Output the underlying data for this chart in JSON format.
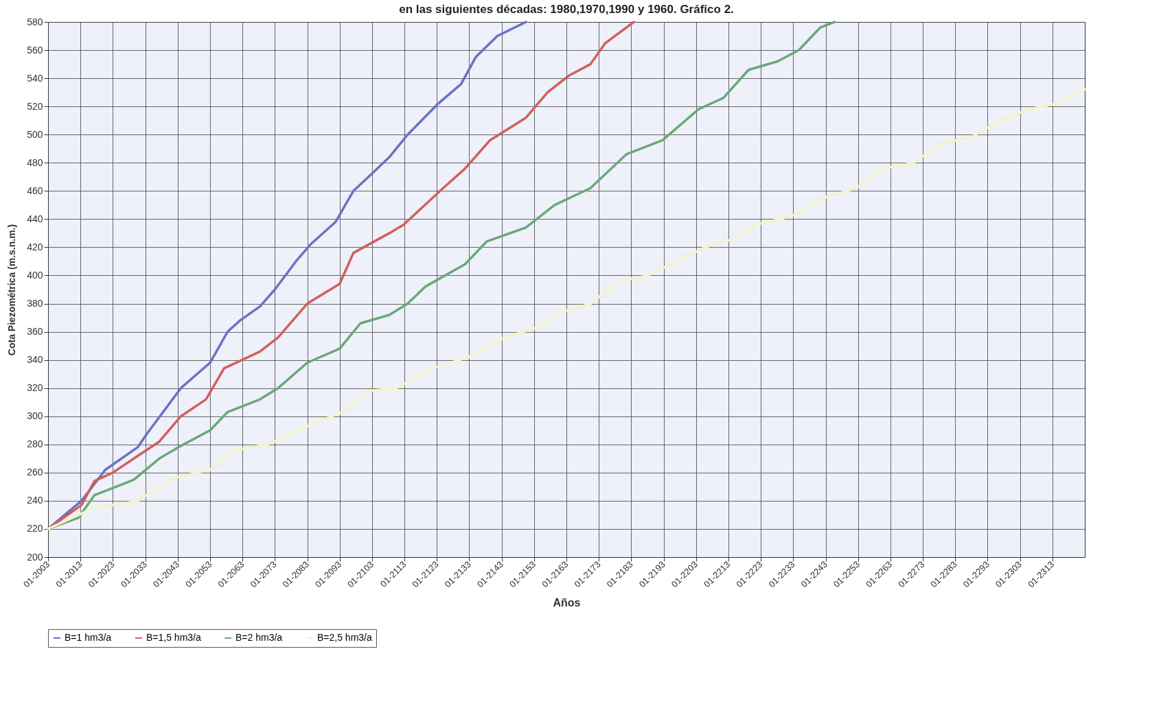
{
  "chart_data": {
    "type": "line",
    "title": "en las siguientes décadas: 1980,1970,1990 y 1960. Gráfico 2.",
    "xlabel": "Años",
    "ylabel": "Cota Piezométrica (m.s.n.m.)",
    "xlim": [
      "2003-01",
      "2323-01"
    ],
    "xticks": [
      {
        "value": "2003-01",
        "label": "01-2003"
      },
      {
        "value": "2013-01",
        "label": "01-2013"
      },
      {
        "value": "2023-01",
        "label": "01-2023"
      },
      {
        "value": "2033-01",
        "label": "01-2033"
      },
      {
        "value": "2043-01",
        "label": "01-2043"
      },
      {
        "value": "2053-01",
        "label": "01-2053"
      },
      {
        "value": "2063-01",
        "label": "01-2063"
      },
      {
        "value": "2073-01",
        "label": "01-2073"
      },
      {
        "value": "2083-01",
        "label": "01-2083"
      },
      {
        "value": "2093-01",
        "label": "01-2093"
      },
      {
        "value": "2103-01",
        "label": "01-2103"
      },
      {
        "value": "2113-01",
        "label": "01-2113"
      },
      {
        "value": "2123-01",
        "label": "01-2123"
      },
      {
        "value": "2133-01",
        "label": "01-2133"
      },
      {
        "value": "2143-01",
        "label": "01-2143"
      },
      {
        "value": "2153-01",
        "label": "01-2153"
      },
      {
        "value": "2163-01",
        "label": "01-2163"
      },
      {
        "value": "2173-01",
        "label": "01-2173"
      },
      {
        "value": "2183-01",
        "label": "01-2183"
      },
      {
        "value": "2193-01",
        "label": "01-2193"
      },
      {
        "value": "2203-01",
        "label": "01-2203"
      },
      {
        "value": "2213-01",
        "label": "01-2213"
      },
      {
        "value": "2223-01",
        "label": "01-2223"
      },
      {
        "value": "2233-01",
        "label": "01-2233"
      },
      {
        "value": "2243-01",
        "label": "01-2243"
      },
      {
        "value": "2253-01",
        "label": "01-2253"
      },
      {
        "value": "2263-01",
        "label": "01-2263"
      },
      {
        "value": "2273-01",
        "label": "01-2273"
      },
      {
        "value": "2283-01",
        "label": "01-2283"
      },
      {
        "value": "2293-01",
        "label": "01-2293"
      },
      {
        "value": "2303-01",
        "label": "01-2303"
      },
      {
        "value": "2313-01",
        "label": "01-2313"
      }
    ],
    "ylim": [
      200,
      580
    ],
    "yticks": [
      200,
      220,
      240,
      260,
      280,
      300,
      320,
      340,
      360,
      380,
      400,
      420,
      440,
      460,
      480,
      500,
      520,
      540,
      560,
      580
    ],
    "grid": true,
    "legend": "bottom",
    "series": [
      {
        "name": "B=1 hm3/a",
        "color": "#6a72c0",
        "x": [
          "2003-01",
          "2013-05",
          "2020-09",
          "2030-09",
          "2033-05",
          "2044-01",
          "2053-01",
          "2058-06",
          "2062-04",
          "2068-06",
          "2073-01",
          "2079-07",
          "2084-01",
          "2091-10",
          "2097-04",
          "2102-11",
          "2108-05",
          "2114-01",
          "2123-06",
          "2130-07",
          "2135-01",
          "2141-09",
          "2150-07"
        ],
        "values": [
          220,
          240,
          262,
          278,
          287,
          320,
          338,
          360,
          368,
          378,
          390,
          410,
          422,
          438,
          460,
          472,
          484,
          500,
          522,
          536,
          555,
          570,
          580
        ]
      },
      {
        "name": "B=1,5 hm3/a",
        "color": "#d0605e",
        "x": [
          "2003-01",
          "2013-05",
          "2017-05",
          "2023-01",
          "2029-07",
          "2037-05",
          "2044-01",
          "2051-10",
          "2057-05",
          "2068-06",
          "2074-01",
          "2083-01",
          "2093-01",
          "2097-04",
          "2108-05",
          "2112-10",
          "2124-01",
          "2131-10",
          "2139-06",
          "2150-07",
          "2157-03",
          "2163-11",
          "2170-06",
          "2175-01",
          "2183-11"
        ],
        "values": [
          220,
          237,
          254,
          260,
          270,
          282,
          300,
          312,
          334,
          346,
          356,
          380,
          394,
          416,
          430,
          436,
          460,
          476,
          496,
          512,
          530,
          542,
          550,
          565,
          580
        ]
      },
      {
        "name": "B=2 hm3/a",
        "color": "#6aa878",
        "x": [
          "2003-01",
          "2012-06",
          "2017-05",
          "2023-01",
          "2029-07",
          "2037-05",
          "2044-01",
          "2053-01",
          "2058-06",
          "2068-06",
          "2074-01",
          "2083-01",
          "2093-01",
          "2099-06",
          "2108-05",
          "2114-01",
          "2119-06",
          "2131-10",
          "2138-05",
          "2150-07",
          "2159-05",
          "2170-06",
          "2181-07",
          "2192-09",
          "2203-10",
          "2211-06",
          "2219-04",
          "2228-03",
          "2234-10",
          "2241-05",
          "2245-10"
        ],
        "values": [
          220,
          228,
          244,
          249,
          255,
          270,
          279,
          290,
          303,
          312,
          320,
          338,
          348,
          366,
          372,
          380,
          392,
          408,
          424,
          434,
          450,
          462,
          486,
          496,
          518,
          526,
          546,
          552,
          560,
          576,
          580
        ]
      },
      {
        "name": "B=2,5 hm3/a",
        "color": "#f3f3c8",
        "x": [
          "2003-01",
          "2016-04",
          "2030-09",
          "2041-10",
          "2053-01",
          "2060-09",
          "2070-09",
          "2086-03",
          "2095-01",
          "2101-10",
          "2110-07",
          "2121-09",
          "2132-10",
          "2143-11",
          "2152-10",
          "2161-08",
          "2170-06",
          "2179-04",
          "2188-03",
          "2197-01",
          "2205-11",
          "2214-10",
          "2221-05",
          "2232-06",
          "2243-07",
          "2252-06",
          "2261-04",
          "2270-03",
          "2279-01",
          "2287-11",
          "2296-10",
          "2305-09",
          "2314-06",
          "2323-01"
        ],
        "values": [
          220,
          234,
          240,
          256,
          262,
          276,
          280,
          296,
          304,
          318,
          320,
          334,
          342,
          356,
          362,
          374,
          380,
          396,
          400,
          410,
          420,
          426,
          436,
          442,
          456,
          462,
          476,
          480,
          494,
          498,
          510,
          518,
          522,
          532
        ]
      }
    ]
  }
}
